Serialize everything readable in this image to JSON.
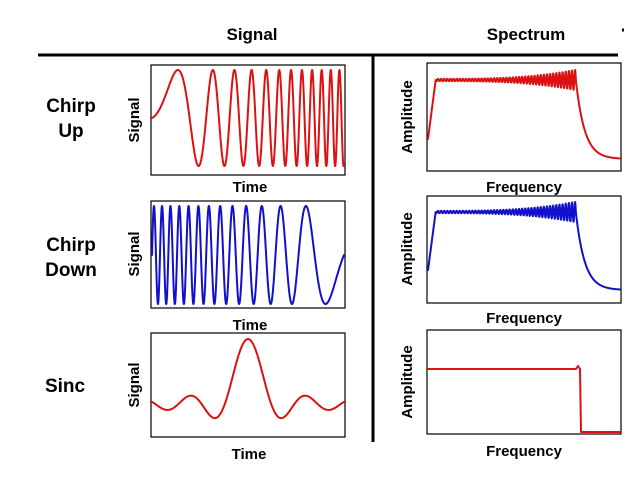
{
  "headers": {
    "signal": "Signal",
    "spectrum": "Spectrum"
  },
  "rows": [
    {
      "label_line1": "Chirp",
      "label_line2": "Up",
      "color": "#dd1111",
      "signal_ylabel": "Signal",
      "signal_xlabel": "Time",
      "spectrum_ylabel": "Amplitude",
      "spectrum_xlabel": "Frequency"
    },
    {
      "label_line1": "Chirp",
      "label_line2": "Down",
      "color": "#1111cc",
      "signal_ylabel": "Signal",
      "signal_xlabel": "Time",
      "spectrum_ylabel": "Amplitude",
      "spectrum_xlabel": "Frequency"
    },
    {
      "label_line1": "Sinc",
      "label_line2": "",
      "color": "#dd1111",
      "signal_ylabel": "Signal",
      "signal_xlabel": "Time",
      "spectrum_ylabel": "Amplitude",
      "spectrum_xlabel": "Frequency"
    }
  ]
}
